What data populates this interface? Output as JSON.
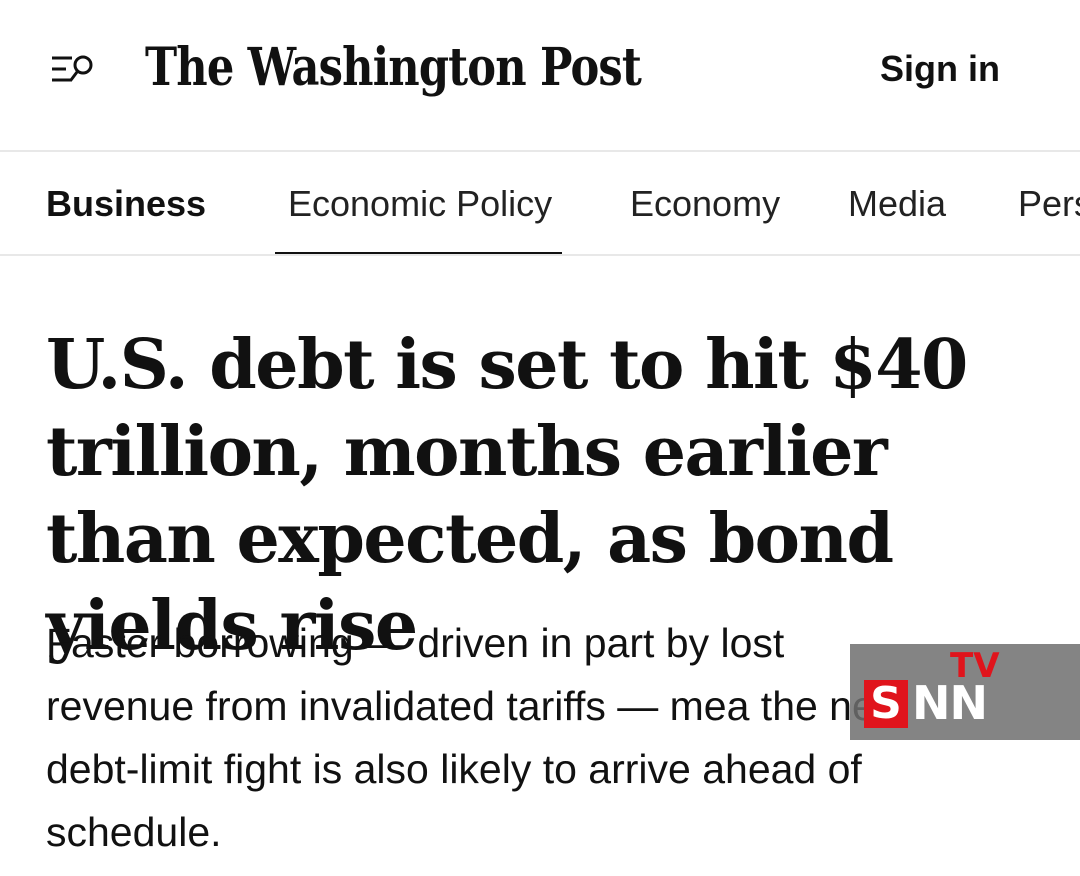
{
  "header": {
    "masthead": "The Washington Post",
    "sign_in_label": "Sign in",
    "menu_icon": "menu-search-icon"
  },
  "section_nav": {
    "section_title": "Business",
    "items": [
      "Economic Policy",
      "Economy",
      "Media",
      "Pers"
    ],
    "active_item": "Economic Policy"
  },
  "article": {
    "headline": "U.S. debt is set to hit $40 trillion, months earlier than expected, as bond yields rise",
    "dek": "Faster borrowing — driven in part by lost revenue from invalidated tariffs — mea the next debt-limit fight is also likely to arrive ahead of schedule."
  },
  "watermark": {
    "letter_s": "S",
    "letters_nn": "NN",
    "tv": "TV"
  },
  "colors": {
    "text": "#111111",
    "divider": "#e8e8e8",
    "watermark_red": "#e0141c",
    "watermark_bg": "#6e6e6e"
  }
}
